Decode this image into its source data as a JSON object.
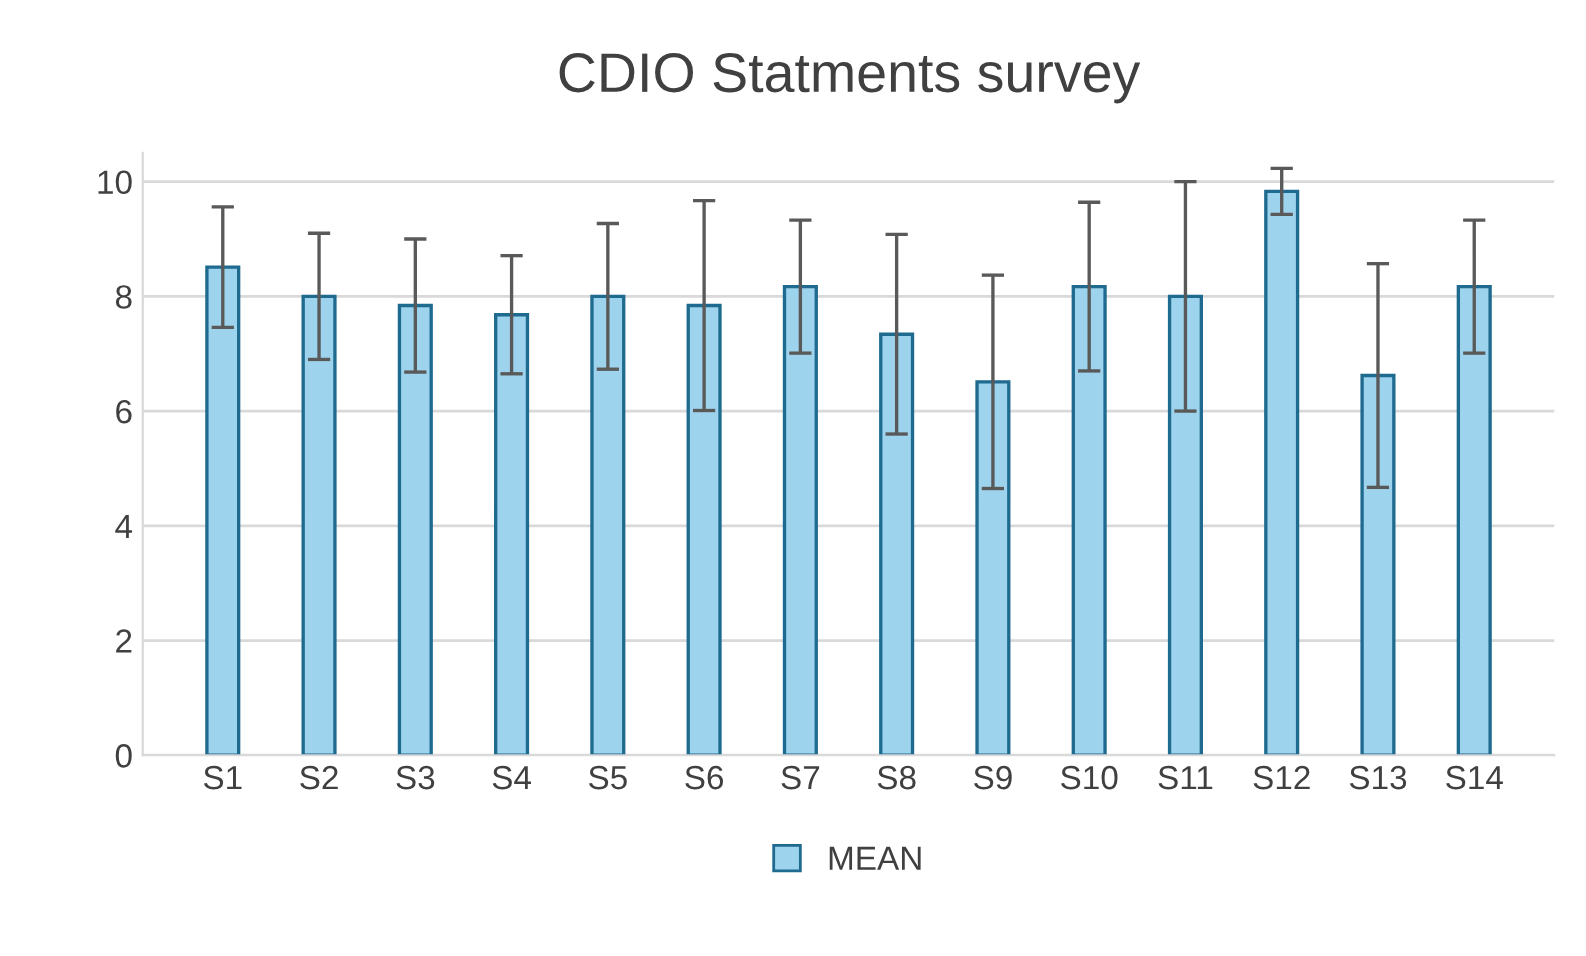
{
  "chart_data": {
    "type": "bar",
    "title": "CDIO Statments survey",
    "categories": [
      "S1",
      "S2",
      "S3",
      "S4",
      "S5",
      "S6",
      "S7",
      "S8",
      "S9",
      "S10",
      "S11",
      "S12",
      "S13",
      "S14"
    ],
    "series": [
      {
        "name": "MEAN",
        "color": "#9dd3ec",
        "values": [
          8.51,
          8.0,
          7.84,
          7.68,
          8.0,
          7.84,
          8.17,
          7.34,
          6.51,
          8.17,
          8.0,
          9.83,
          6.62,
          8.17
        ],
        "errors": [
          1.05,
          1.1,
          1.16,
          1.03,
          1.27,
          1.83,
          1.16,
          1.74,
          1.86,
          1.47,
          2.0,
          0.4,
          1.95,
          1.16
        ]
      }
    ],
    "ylim": [
      0,
      10.5
    ],
    "yticks": [
      0,
      2,
      4,
      6,
      8,
      10
    ],
    "grid": "y",
    "legend": "bottom"
  }
}
